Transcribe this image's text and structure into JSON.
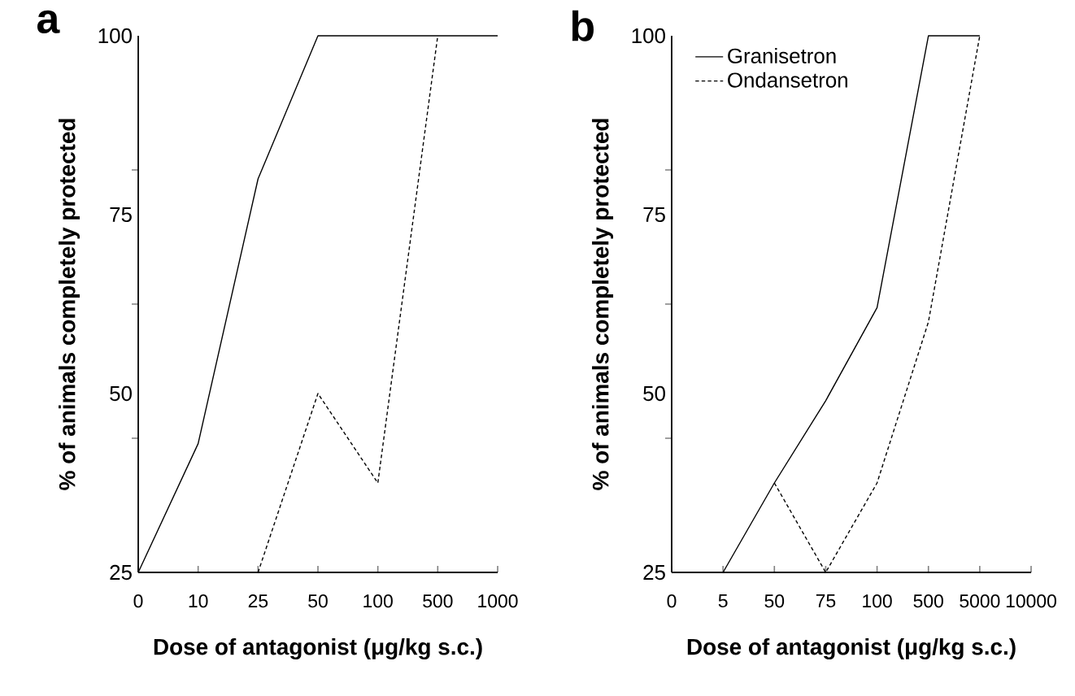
{
  "chart_data": [
    {
      "type": "line",
      "title": "a",
      "xlabel": "Dose of antagonist (μg/kg s.c.)",
      "ylabel": "% of animals completely protected",
      "categories": [
        "0",
        "10",
        "25",
        "50",
        "100",
        "500",
        "1000"
      ],
      "ylim": [
        25,
        100
      ],
      "yticks": [
        25,
        {
          "value": 43.75,
          "label": null
        },
        50,
        {
          "value": 62.5,
          "label": null
        },
        75,
        {
          "value": 81.25,
          "label": null
        },
        100
      ],
      "legend": false,
      "series": [
        {
          "color": "#000000",
          "line_style": "solid",
          "values": [
            25,
            43,
            80,
            100,
            100,
            100,
            100
          ]
        },
        {
          "color": "#000000",
          "line_style": "dashed",
          "values": [
            null,
            null,
            25,
            50,
            37.5,
            100,
            null
          ]
        }
      ]
    },
    {
      "type": "line",
      "title": "b",
      "xlabel": "Dose of antagonist (μg/kg s.c.)",
      "ylabel": "% of animals completely protected",
      "categories": [
        "0",
        "5",
        "50",
        "75",
        "100",
        "500",
        "5000",
        "10000"
      ],
      "ylim": [
        25,
        100
      ],
      "yticks": [
        25,
        {
          "value": 43.75,
          "label": null
        },
        50,
        {
          "value": 62.5,
          "label": null
        },
        75,
        {
          "value": 81.25,
          "label": null
        },
        100
      ],
      "legend": "top left",
      "series": [
        {
          "name": "Granisetron",
          "color": "#000000",
          "line_style": "solid",
          "values": [
            null,
            25,
            37.5,
            49,
            62,
            100,
            100,
            null
          ]
        },
        {
          "name": "Ondansetron",
          "color": "#000000",
          "line_style": "dashed",
          "values": [
            null,
            null,
            37.5,
            25,
            37.5,
            60,
            100,
            null
          ]
        }
      ]
    }
  ]
}
